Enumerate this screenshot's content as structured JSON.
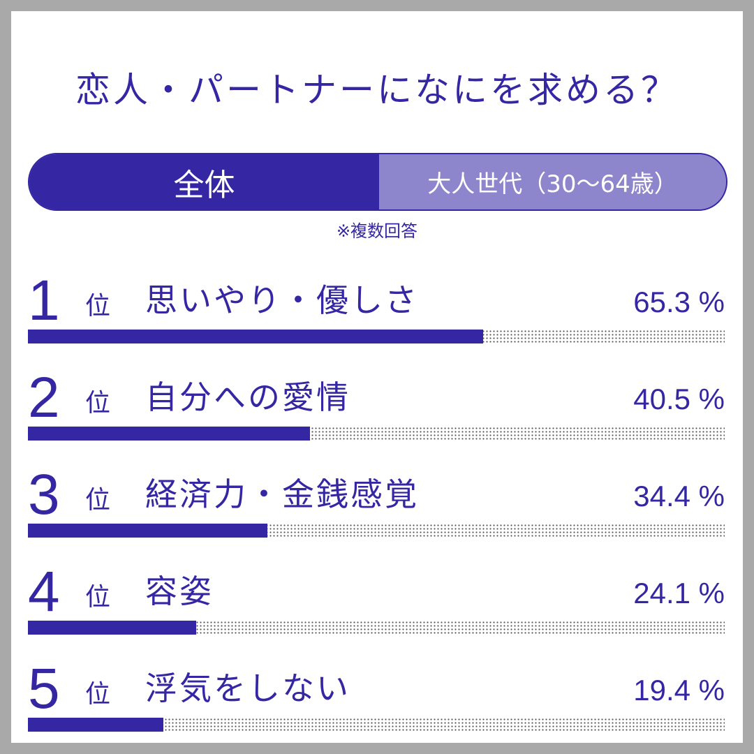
{
  "title": "恋人・パートナーになにを求める？",
  "tabs": [
    {
      "label": "全体",
      "active": true
    },
    {
      "label": "大人世代（30〜64歳）",
      "active": false
    }
  ],
  "note": "※複数回答",
  "rank_suffix": "位",
  "colors": {
    "accent": "#3527a3",
    "accent_light": "#8d86cc",
    "frame": "#a9a9a9"
  },
  "chart_data": {
    "type": "bar",
    "orientation": "horizontal",
    "title": "恋人・パートナーになにを求める？",
    "categories": [
      "思いやり・優しさ",
      "自分への愛情",
      "経済力・金銭感覚",
      "容姿",
      "浮気をしない"
    ],
    "values": [
      65.3,
      40.5,
      34.4,
      24.1,
      19.4
    ],
    "unit": "%",
    "xlim": [
      0,
      100
    ],
    "ranks": [
      "1",
      "2",
      "3",
      "4",
      "5"
    ],
    "value_labels": [
      "65.3 %",
      "40.5 %",
      "34.4 %",
      "24.1 %",
      "19.4 %"
    ],
    "grid": false,
    "legend": "none"
  }
}
